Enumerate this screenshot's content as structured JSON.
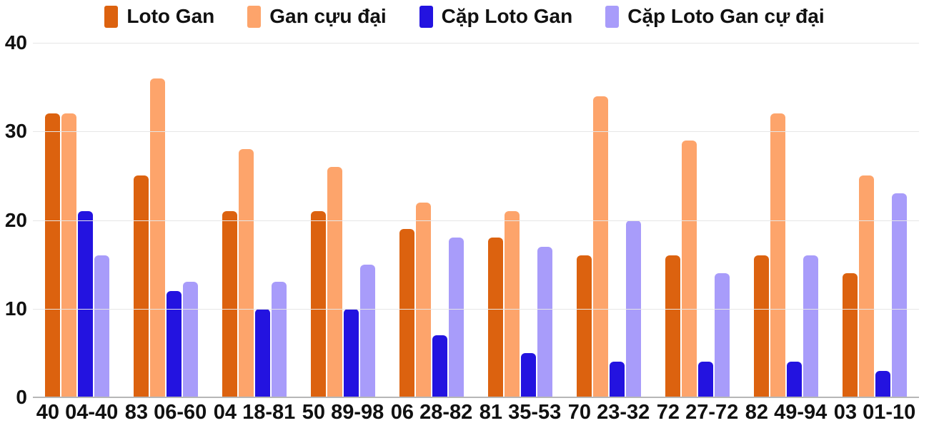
{
  "chart_data": {
    "type": "bar",
    "title": "",
    "xlabel": "",
    "ylabel": "",
    "categories": [
      "40 04-40",
      "83 06-60",
      "04 18-81",
      "50 89-98",
      "06 28-82",
      "81 35-53",
      "70 23-32",
      "72 27-72",
      "82 49-94",
      "03 01-10"
    ],
    "series": [
      {
        "name": "Loto Gan",
        "color": "#dc620f",
        "values": [
          32,
          25,
          21,
          21,
          19,
          18,
          16,
          16,
          16,
          14
        ]
      },
      {
        "name": "Gan cựu đại",
        "color": "#fda46b",
        "values": [
          32,
          36,
          28,
          26,
          22,
          21,
          34,
          29,
          32,
          25
        ]
      },
      {
        "name": "Cặp Loto Gan",
        "color": "#2313e0",
        "values": [
          21,
          12,
          10,
          10,
          7,
          5,
          4,
          4,
          4,
          3
        ]
      },
      {
        "name": "Cặp Loto Gan cự đại",
        "color": "#a89cfa",
        "values": [
          16,
          13,
          13,
          15,
          18,
          17,
          20,
          14,
          16,
          23
        ]
      }
    ],
    "ylim": [
      0,
      40
    ],
    "yticks": [
      0,
      10,
      20,
      30,
      40
    ],
    "grid": true,
    "legend_position": "top"
  },
  "colors": {
    "background": "#ffffff",
    "gridline": "#e6e6e6",
    "axis_line": "#b6b6b6",
    "text": "#111111"
  }
}
